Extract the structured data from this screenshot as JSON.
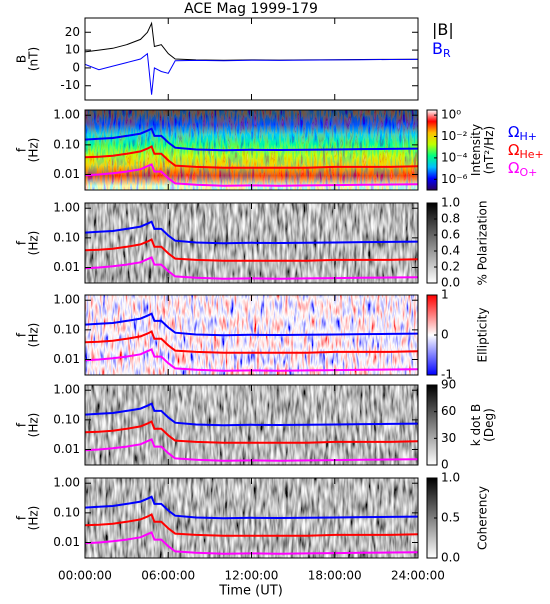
{
  "title": "ACE Mag 1999-179",
  "x_axis": {
    "xlabel": "Time (UT)",
    "xlim": [
      0,
      24
    ],
    "xticks": [
      {
        "value": 0,
        "label": "00:00:00"
      },
      {
        "value": 6,
        "label": "06:00:00"
      },
      {
        "value": 12,
        "label": "12:00:00"
      },
      {
        "value": 18,
        "label": "18:00:00"
      },
      {
        "value": 24,
        "label": "24:00:00"
      }
    ]
  },
  "x": [
    0,
    1,
    2,
    3,
    4,
    4.5,
    4.8,
    5,
    5.5,
    6,
    6.5,
    8,
    10,
    12,
    14,
    16,
    18,
    20,
    22,
    24
  ],
  "gyro_series": [
    {
      "name": "Ω",
      "subscript": "H+",
      "color": "#0000ff",
      "values": [
        0.15,
        0.16,
        0.17,
        0.2,
        0.24,
        0.3,
        0.35,
        0.2,
        0.2,
        0.12,
        0.08,
        0.07,
        0.066,
        0.068,
        0.067,
        0.068,
        0.07,
        0.072,
        0.073,
        0.075
      ]
    },
    {
      "name": "Ω",
      "subscript": "He+",
      "color": "#ff0000",
      "values": [
        0.038,
        0.04,
        0.043,
        0.05,
        0.06,
        0.075,
        0.088,
        0.05,
        0.05,
        0.03,
        0.02,
        0.018,
        0.017,
        0.017,
        0.017,
        0.017,
        0.018,
        0.018,
        0.018,
        0.019
      ]
    },
    {
      "name": "Ω",
      "subscript": "O+",
      "color": "#ff00ff",
      "values": [
        0.0095,
        0.01,
        0.011,
        0.0125,
        0.015,
        0.019,
        0.022,
        0.0125,
        0.0125,
        0.0075,
        0.005,
        0.0045,
        0.0042,
        0.0043,
        0.0042,
        0.0043,
        0.0044,
        0.0045,
        0.0046,
        0.0047
      ]
    }
  ],
  "chart_data": [
    {
      "type": "line",
      "ylabel": [
        "B",
        "(nT)"
      ],
      "ylim": [
        -18,
        28
      ],
      "yticks": [
        -10,
        0,
        10,
        20
      ],
      "series": [
        {
          "name": "|B|",
          "color": "#000000",
          "values": [
            9,
            10,
            11,
            13,
            16,
            20,
            25,
            12,
            13,
            8,
            5,
            4.5,
            4.3,
            4.5,
            4.4,
            4.5,
            4.6,
            4.7,
            4.8,
            4.9
          ]
        },
        {
          "name": "B",
          "subscript": "R",
          "color": "#0000ff",
          "values": [
            2,
            -1,
            1,
            3,
            5,
            8,
            -15,
            0,
            -2,
            -3,
            4,
            4.2,
            4,
            4.3,
            4.2,
            4.4,
            4.5,
            4.6,
            4.7,
            4.8
          ]
        }
      ]
    },
    {
      "type": "spectrogram",
      "ylabel": [
        "f",
        "(Hz)"
      ],
      "log_y": true,
      "ylim": [
        0.003,
        1.5
      ],
      "yticks": [
        {
          "value": 1,
          "label": "1.00"
        },
        {
          "value": 0.1,
          "label": "0.10"
        },
        {
          "value": 0.01,
          "label": "0.01"
        }
      ],
      "colorbar_label": [
        "Intensity",
        "(nT²/Hz)"
      ],
      "clim": [
        1e-07,
        3
      ],
      "log_c": true,
      "colormap": [
        "#2a0060",
        "#0000ff",
        "#00c0ff",
        "#00ff80",
        "#c0ff00",
        "#ffc000",
        "#ff0000",
        "#ffffff"
      ],
      "cticks": [
        {
          "value": 1,
          "label": "10⁰"
        },
        {
          "value": 0.01,
          "label": "10⁻²"
        },
        {
          "value": 0.0001,
          "label": "10⁻⁴"
        },
        {
          "value": 1e-06,
          "label": "10⁻⁶"
        }
      ],
      "legend": true
    },
    {
      "type": "spectrogram",
      "ylabel": [
        "f",
        "(Hz)"
      ],
      "log_y": true,
      "ylim": [
        0.003,
        1.5
      ],
      "yticks": [
        {
          "value": 1,
          "label": "1.00"
        },
        {
          "value": 0.1,
          "label": "0.10"
        },
        {
          "value": 0.01,
          "label": "0.01"
        }
      ],
      "colorbar_label": [
        "% Polarization"
      ],
      "clim": [
        0,
        1
      ],
      "colormap": [
        "#ffffff",
        "#000000"
      ],
      "cticks": [
        {
          "value": 0,
          "label": "0.0"
        },
        {
          "value": 0.2,
          "label": "0.2"
        },
        {
          "value": 0.4,
          "label": "0.4"
        },
        {
          "value": 0.6,
          "label": "0.6"
        },
        {
          "value": 0.8,
          "label": "0.8"
        },
        {
          "value": 1,
          "label": "1.0"
        }
      ]
    },
    {
      "type": "spectrogram",
      "ylabel": [
        "f",
        "(Hz)"
      ],
      "log_y": true,
      "ylim": [
        0.003,
        1.5
      ],
      "yticks": [
        {
          "value": 1,
          "label": "1.00"
        },
        {
          "value": 0.1,
          "label": "0.10"
        },
        {
          "value": 0.01,
          "label": "0.01"
        }
      ],
      "colorbar_label": [
        "Ellipticity"
      ],
      "clim": [
        -1,
        1
      ],
      "colormap": [
        "#0000ff",
        "#ffffff",
        "#ff0000"
      ],
      "cticks": [
        -1,
        0,
        1
      ]
    },
    {
      "type": "spectrogram",
      "ylabel": [
        "f",
        "(Hz)"
      ],
      "log_y": true,
      "ylim": [
        0.003,
        1.5
      ],
      "yticks": [
        {
          "value": 1,
          "label": "1.00"
        },
        {
          "value": 0.1,
          "label": "0.10"
        },
        {
          "value": 0.01,
          "label": "0.01"
        }
      ],
      "colorbar_label": [
        "k dot B",
        "(Deg)"
      ],
      "clim": [
        0,
        90
      ],
      "colormap": [
        "#ffffff",
        "#000000"
      ],
      "cticks": [
        0,
        30,
        60,
        90
      ]
    },
    {
      "type": "spectrogram",
      "ylabel": [
        "f",
        "(Hz)"
      ],
      "log_y": true,
      "ylim": [
        0.003,
        1.5
      ],
      "yticks": [
        {
          "value": 1,
          "label": "1.00"
        },
        {
          "value": 0.1,
          "label": "0.10"
        },
        {
          "value": 0.01,
          "label": "0.01"
        }
      ],
      "colorbar_label": [
        "Coherency"
      ],
      "clim": [
        0,
        1
      ],
      "colormap": [
        "#ffffff",
        "#000000"
      ],
      "cticks": [
        {
          "value": 0,
          "label": "0.0"
        },
        {
          "value": 0.5,
          "label": "0.5"
        },
        {
          "value": 1,
          "label": "1.0"
        }
      ]
    }
  ]
}
